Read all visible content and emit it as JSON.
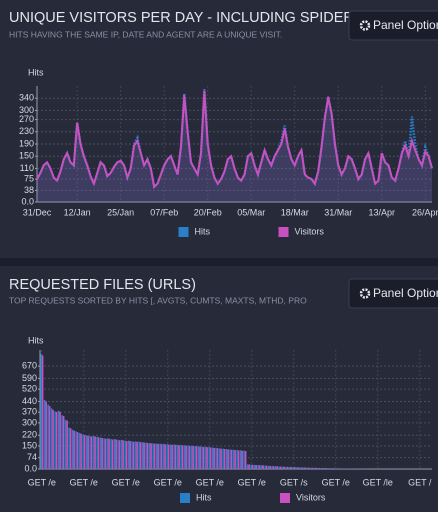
{
  "chart_data": [
    {
      "type": "line",
      "title": "UNIQUE VISITORS PER DAY - INCLUDING SPIDERS",
      "subtitle": "HITS HAVING THE SAME IP, DATE AND AGENT ARE A UNIQUE VISIT.",
      "button": "Panel Options",
      "y_label": "Hits",
      "categories": [
        "31/Dec",
        null,
        null,
        null,
        null,
        null,
        null,
        null,
        null,
        null,
        null,
        null,
        "12/Jan",
        null,
        null,
        null,
        null,
        null,
        null,
        null,
        null,
        null,
        null,
        null,
        null,
        "25/Jan",
        null,
        null,
        null,
        null,
        null,
        null,
        null,
        null,
        null,
        null,
        null,
        null,
        "07/Feb",
        null,
        null,
        null,
        null,
        null,
        null,
        null,
        null,
        null,
        null,
        null,
        null,
        "20/Feb",
        null,
        null,
        null,
        null,
        null,
        null,
        null,
        null,
        null,
        null,
        null,
        null,
        "05/Mar",
        null,
        null,
        null,
        null,
        null,
        null,
        null,
        null,
        null,
        null,
        null,
        null,
        "18/Mar",
        null,
        null,
        null,
        null,
        null,
        null,
        null,
        null,
        null,
        null,
        null,
        null,
        "31/Mar",
        null,
        null,
        null,
        null,
        null,
        null,
        null,
        null,
        null,
        null,
        null,
        null,
        "13/Apr",
        null,
        null,
        null,
        null,
        null,
        null,
        null,
        null,
        null,
        null,
        null,
        null,
        "26/Apr",
        null,
        null
      ],
      "series": [
        {
          "name": "Hits",
          "color": "#2a80c8",
          "values": [
            75,
            95,
            120,
            130,
            110,
            80,
            70,
            100,
            140,
            160,
            130,
            120,
            260,
            190,
            150,
            120,
            85,
            60,
            95,
            130,
            120,
            85,
            95,
            115,
            130,
            135,
            120,
            80,
            110,
            190,
            210,
            160,
            120,
            140,
            110,
            50,
            60,
            90,
            120,
            140,
            150,
            120,
            90,
            180,
            355,
            230,
            130,
            110,
            90,
            160,
            370,
            190,
            120,
            80,
            60,
            75,
            100,
            140,
            150,
            110,
            80,
            70,
            90,
            150,
            160,
            120,
            90,
            130,
            170,
            140,
            120,
            150,
            170,
            200,
            250,
            180,
            140,
            120,
            150,
            170,
            90,
            80,
            75,
            60,
            100,
            180,
            280,
            340,
            290,
            190,
            120,
            90,
            110,
            150,
            140,
            110,
            75,
            90,
            140,
            160,
            110,
            60,
            70,
            160,
            130,
            120,
            80,
            70,
            110,
            160,
            200,
            150,
            280,
            190,
            140,
            120,
            180,
            150,
            110
          ]
        },
        {
          "name": "Visitors",
          "color": "#c850c0",
          "values": [
            75,
            95,
            120,
            130,
            110,
            80,
            70,
            100,
            140,
            160,
            130,
            120,
            260,
            190,
            150,
            120,
            85,
            60,
            95,
            130,
            120,
            85,
            95,
            115,
            130,
            135,
            120,
            80,
            110,
            185,
            200,
            160,
            120,
            140,
            110,
            50,
            60,
            90,
            120,
            140,
            150,
            120,
            90,
            180,
            350,
            230,
            130,
            110,
            90,
            160,
            365,
            190,
            120,
            80,
            60,
            75,
            100,
            140,
            150,
            110,
            80,
            70,
            90,
            150,
            160,
            120,
            90,
            130,
            170,
            140,
            120,
            150,
            170,
            190,
            240,
            180,
            140,
            120,
            150,
            170,
            90,
            80,
            75,
            60,
            100,
            180,
            275,
            345,
            290,
            190,
            120,
            90,
            110,
            150,
            140,
            110,
            75,
            90,
            140,
            160,
            110,
            60,
            70,
            160,
            130,
            120,
            80,
            70,
            110,
            160,
            185,
            150,
            200,
            170,
            140,
            120,
            165,
            150,
            110
          ]
        }
      ],
      "ylim": [
        0,
        380
      ],
      "yticks": [
        {
          "value": 0,
          "label": "0.0"
        },
        38,
        75,
        110,
        150,
        190,
        230,
        270,
        300,
        340
      ],
      "grid": true
    },
    {
      "type": "bar",
      "title": "REQUESTED FILES (URLS)",
      "subtitle": "TOP REQUESTS SORTED BY HITS [, AVGTS, CUMTS, MAXTS, MTHD, PRO",
      "button": "Panel Options",
      "y_label": "Hits",
      "categories": [
        "GET /e",
        null,
        null,
        null,
        null,
        null,
        null,
        null,
        null,
        null,
        null,
        null,
        "GET /e",
        null,
        null,
        null,
        null,
        null,
        null,
        null,
        null,
        null,
        null,
        null,
        "GET /e",
        null,
        null,
        null,
        null,
        null,
        null,
        null,
        null,
        null,
        null,
        null,
        "GET /e",
        null,
        null,
        null,
        null,
        null,
        null,
        null,
        null,
        null,
        null,
        null,
        "GET /e",
        null,
        null,
        null,
        null,
        null,
        null,
        null,
        null,
        null,
        null,
        null,
        "GET /e",
        null,
        null,
        null,
        null,
        null,
        null,
        null,
        null,
        null,
        null,
        null,
        "GET /s",
        null,
        null,
        null,
        null,
        null,
        null,
        null,
        null,
        null,
        null,
        null,
        "GET /e",
        null,
        null,
        null,
        null,
        null,
        null,
        null,
        null,
        null,
        null,
        null,
        "GET /le",
        null,
        null,
        null,
        null,
        null,
        null,
        null,
        null,
        null,
        null,
        null,
        "GET /",
        null,
        null,
        null
      ],
      "series": [
        {
          "name": "Hits",
          "color": "#2a80c8",
          "values": [
            748,
            450,
            420,
            395,
            375,
            380,
            350,
            320,
            270,
            255,
            245,
            235,
            225,
            220,
            215,
            215,
            210,
            205,
            200,
            200,
            195,
            195,
            190,
            190,
            185,
            185,
            180,
            180,
            178,
            175,
            172,
            170,
            168,
            166,
            165,
            164,
            162,
            160,
            160,
            158,
            157,
            155,
            154,
            152,
            150,
            148,
            146,
            145,
            143,
            140,
            138,
            135,
            133,
            130,
            128,
            126,
            124,
            122,
            120,
            30,
            28,
            26,
            25,
            24,
            22,
            20,
            19,
            18,
            16,
            15,
            14,
            13,
            12,
            11,
            10,
            10,
            9,
            8,
            8,
            7,
            6,
            6,
            5,
            5,
            4,
            4,
            3,
            3,
            3,
            2,
            2,
            2,
            1,
            1,
            1,
            1,
            1,
            1,
            1,
            1,
            1,
            1,
            1,
            1,
            1,
            1,
            1,
            1,
            1,
            1,
            1,
            1
          ]
        },
        {
          "name": "Visitors",
          "color": "#c850c0",
          "values": [
            740,
            440,
            410,
            385,
            370,
            372,
            345,
            315,
            265,
            250,
            240,
            230,
            220,
            216,
            212,
            212,
            206,
            202,
            197,
            197,
            192,
            192,
            187,
            187,
            182,
            182,
            177,
            177,
            175,
            172,
            169,
            167,
            165,
            163,
            162,
            161,
            159,
            157,
            157,
            155,
            154,
            152,
            151,
            149,
            147,
            145,
            143,
            142,
            140,
            137,
            135,
            132,
            130,
            127,
            125,
            123,
            121,
            119,
            117,
            30,
            28,
            26,
            25,
            24,
            22,
            20,
            19,
            18,
            16,
            15,
            14,
            13,
            12,
            11,
            10,
            10,
            9,
            8,
            8,
            7,
            6,
            6,
            5,
            5,
            4,
            4,
            3,
            3,
            3,
            2,
            2,
            2,
            1,
            1,
            1,
            1,
            1,
            1,
            1,
            1,
            1,
            1,
            1,
            1,
            1,
            1,
            1,
            1,
            1,
            1,
            1,
            1
          ]
        }
      ],
      "ylim": [
        0,
        775
      ],
      "yticks": [
        {
          "value": 0,
          "label": "0.0"
        },
        74,
        150,
        220,
        300,
        370,
        440,
        520,
        590,
        670
      ],
      "grid": true
    }
  ]
}
